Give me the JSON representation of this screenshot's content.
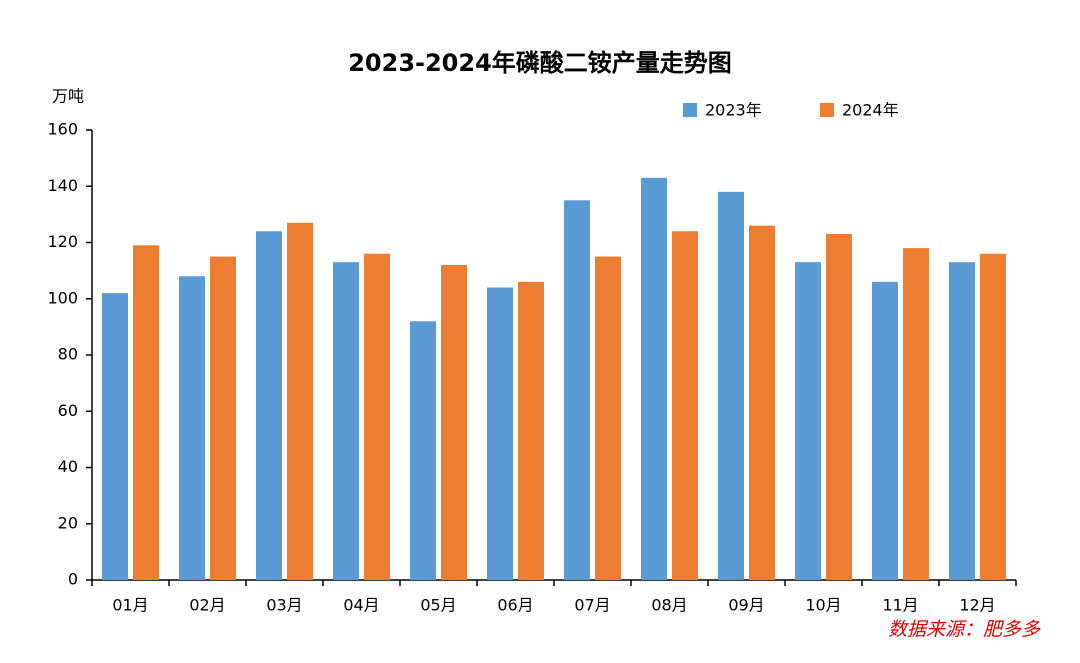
{
  "chart_data": {
    "type": "bar",
    "title": "2023-2024年磷酸二铵产量走势图",
    "y_label": "万吨",
    "source": "数据来源：肥多多",
    "categories": [
      "01月",
      "02月",
      "03月",
      "04月",
      "05月",
      "06月",
      "07月",
      "08月",
      "09月",
      "10月",
      "11月",
      "12月"
    ],
    "series": [
      {
        "name": "2023年",
        "color": "#5b9bd5",
        "values": [
          102,
          108,
          124,
          113,
          92,
          104,
          135,
          143,
          138,
          113,
          106,
          113
        ]
      },
      {
        "name": "2024年",
        "color": "#ed7d31",
        "values": [
          119,
          115,
          127,
          116,
          112,
          106,
          115,
          124,
          126,
          123,
          118,
          116
        ]
      }
    ],
    "ylim": [
      0,
      160
    ],
    "yticks": [
      0,
      20,
      40,
      60,
      80,
      100,
      120,
      140,
      160
    ],
    "grid": false,
    "legend": "top-right"
  }
}
